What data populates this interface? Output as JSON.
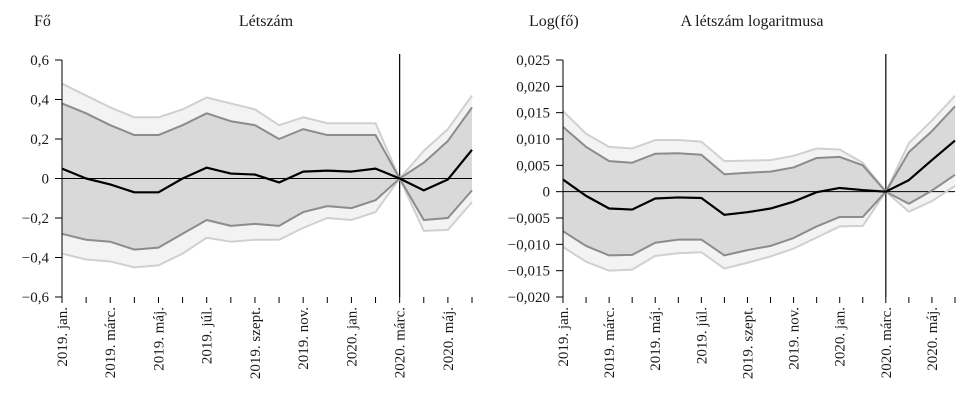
{
  "chart_data": [
    {
      "type": "area",
      "title": "Létszám",
      "ylabel": "Fő",
      "xlabel": "",
      "ylim": [
        -0.6,
        0.6
      ],
      "yticks": [
        {
          "value": -0.6,
          "label": "−0,6"
        },
        {
          "value": -0.4,
          "label": "−0,4"
        },
        {
          "value": -0.2,
          "label": "−0,2"
        },
        {
          "value": 0,
          "label": "0"
        },
        {
          "value": 0.2,
          "label": "0,2"
        },
        {
          "value": 0.4,
          "label": "0,4"
        },
        {
          "value": 0.6,
          "label": "0,6"
        }
      ],
      "x": [
        "2019. jan.",
        "2019. febr.",
        "2019. márc.",
        "2019. ápr.",
        "2019. máj.",
        "2019. jún.",
        "2019. júl.",
        "2019. aug.",
        "2019. szept.",
        "2019. okt.",
        "2019. nov.",
        "2019. dec.",
        "2020. jan.",
        "2020. febr.",
        "2020. márc.",
        "2020. ápr.",
        "2020. máj.",
        "2020. jún."
      ],
      "xtick_labels": [
        "2019. jan.",
        "2019. márc.",
        "2019. máj.",
        "2019. júl.",
        "2019. szept.",
        "2019. nov.",
        "2020. jan.",
        "2020. márc.",
        "2020. máj."
      ],
      "event_x": "2020. márc.",
      "grid": false,
      "series": [
        {
          "role": "outer_upper",
          "color": "#d0d0d0",
          "values": [
            0.48,
            0.42,
            0.36,
            0.31,
            0.31,
            0.35,
            0.41,
            0.38,
            0.35,
            0.27,
            0.31,
            0.28,
            0.28,
            0.28,
            0.0,
            0.14,
            0.25,
            0.42
          ]
        },
        {
          "role": "inner_upper",
          "color": "#8c8c8c",
          "values": [
            0.38,
            0.33,
            0.27,
            0.22,
            0.22,
            0.27,
            0.33,
            0.29,
            0.27,
            0.2,
            0.25,
            0.22,
            0.22,
            0.22,
            0.0,
            0.08,
            0.19,
            0.36
          ]
        },
        {
          "role": "center",
          "color": "#000000",
          "values": [
            0.05,
            0.0,
            -0.03,
            -0.07,
            -0.07,
            0.0,
            0.055,
            0.025,
            0.02,
            -0.02,
            0.035,
            0.04,
            0.035,
            0.05,
            0.0,
            -0.06,
            -0.005,
            0.145
          ]
        },
        {
          "role": "inner_lower",
          "color": "#8c8c8c",
          "values": [
            -0.28,
            -0.31,
            -0.32,
            -0.36,
            -0.35,
            -0.28,
            -0.21,
            -0.24,
            -0.23,
            -0.24,
            -0.17,
            -0.14,
            -0.15,
            -0.11,
            0.0,
            -0.21,
            -0.2,
            -0.06
          ]
        },
        {
          "role": "outer_lower",
          "color": "#d0d0d0",
          "values": [
            -0.38,
            -0.41,
            -0.42,
            -0.45,
            -0.44,
            -0.38,
            -0.3,
            -0.32,
            -0.31,
            -0.31,
            -0.25,
            -0.2,
            -0.21,
            -0.17,
            0.0,
            -0.265,
            -0.26,
            -0.12
          ]
        }
      ]
    },
    {
      "type": "area",
      "title": "A létszám logaritmusa",
      "ylabel": "Log(fő)",
      "xlabel": "",
      "ylim": [
        -0.02,
        0.025
      ],
      "yticks": [
        {
          "value": -0.02,
          "label": "−0,020"
        },
        {
          "value": -0.015,
          "label": "−0,015"
        },
        {
          "value": -0.01,
          "label": "−0,010"
        },
        {
          "value": -0.005,
          "label": "−0,005"
        },
        {
          "value": 0,
          "label": "0"
        },
        {
          "value": 0.005,
          "label": "0,005"
        },
        {
          "value": 0.01,
          "label": "0,010"
        },
        {
          "value": 0.015,
          "label": "0,015"
        },
        {
          "value": 0.02,
          "label": "0,020"
        },
        {
          "value": 0.025,
          "label": "0,025"
        }
      ],
      "x": [
        "2019. jan.",
        "2019. febr.",
        "2019. márc.",
        "2019. ápr.",
        "2019. máj.",
        "2019. jún.",
        "2019. júl.",
        "2019. aug.",
        "2019. szept.",
        "2019. okt.",
        "2019. nov.",
        "2019. dec.",
        "2020. jan.",
        "2020. febr.",
        "2020. márc.",
        "2020. ápr.",
        "2020. máj.",
        "2020. jún."
      ],
      "xtick_labels": [
        "2019. jan.",
        "2019. márc.",
        "2019. máj.",
        "2019. júl.",
        "2019. szept.",
        "2019. nov.",
        "2020. jan.",
        "2020. márc.",
        "2020. máj."
      ],
      "event_x": "2020. márc.",
      "grid": false,
      "series": [
        {
          "role": "outer_upper",
          "color": "#d0d0d0",
          "values": [
            0.0153,
            0.011,
            0.0085,
            0.0082,
            0.0098,
            0.0098,
            0.0095,
            0.0058,
            0.0059,
            0.006,
            0.0068,
            0.0082,
            0.008,
            0.0055,
            0.0,
            0.0092,
            0.0135,
            0.0182
          ]
        },
        {
          "role": "inner_upper",
          "color": "#8c8c8c",
          "values": [
            0.0123,
            0.0085,
            0.0058,
            0.0055,
            0.0072,
            0.0073,
            0.007,
            0.0033,
            0.0036,
            0.0038,
            0.0046,
            0.0064,
            0.0066,
            0.005,
            0.0,
            0.0075,
            0.0115,
            0.0162
          ]
        },
        {
          "role": "center",
          "color": "#000000",
          "values": [
            0.0023,
            -0.0008,
            -0.0032,
            -0.0034,
            -0.0013,
            -0.0011,
            -0.0012,
            -0.0044,
            -0.0039,
            -0.0032,
            -0.0019,
            -0.0001,
            0.0007,
            0.0003,
            0.0,
            0.0022,
            0.006,
            0.0097
          ]
        },
        {
          "role": "inner_lower",
          "color": "#8c8c8c",
          "values": [
            -0.0075,
            -0.0103,
            -0.0121,
            -0.012,
            -0.0097,
            -0.0091,
            -0.0091,
            -0.0121,
            -0.0111,
            -0.0103,
            -0.0088,
            -0.0066,
            -0.0048,
            -0.0048,
            0.0,
            -0.0023,
            0.0002,
            0.0032
          ]
        },
        {
          "role": "outer_lower",
          "color": "#d0d0d0",
          "values": [
            -0.0105,
            -0.0133,
            -0.015,
            -0.0148,
            -0.0122,
            -0.0117,
            -0.0115,
            -0.0146,
            -0.0135,
            -0.0123,
            -0.0108,
            -0.0087,
            -0.0066,
            -0.0065,
            0.0,
            -0.0038,
            -0.0018,
            0.0011
          ]
        }
      ]
    }
  ]
}
